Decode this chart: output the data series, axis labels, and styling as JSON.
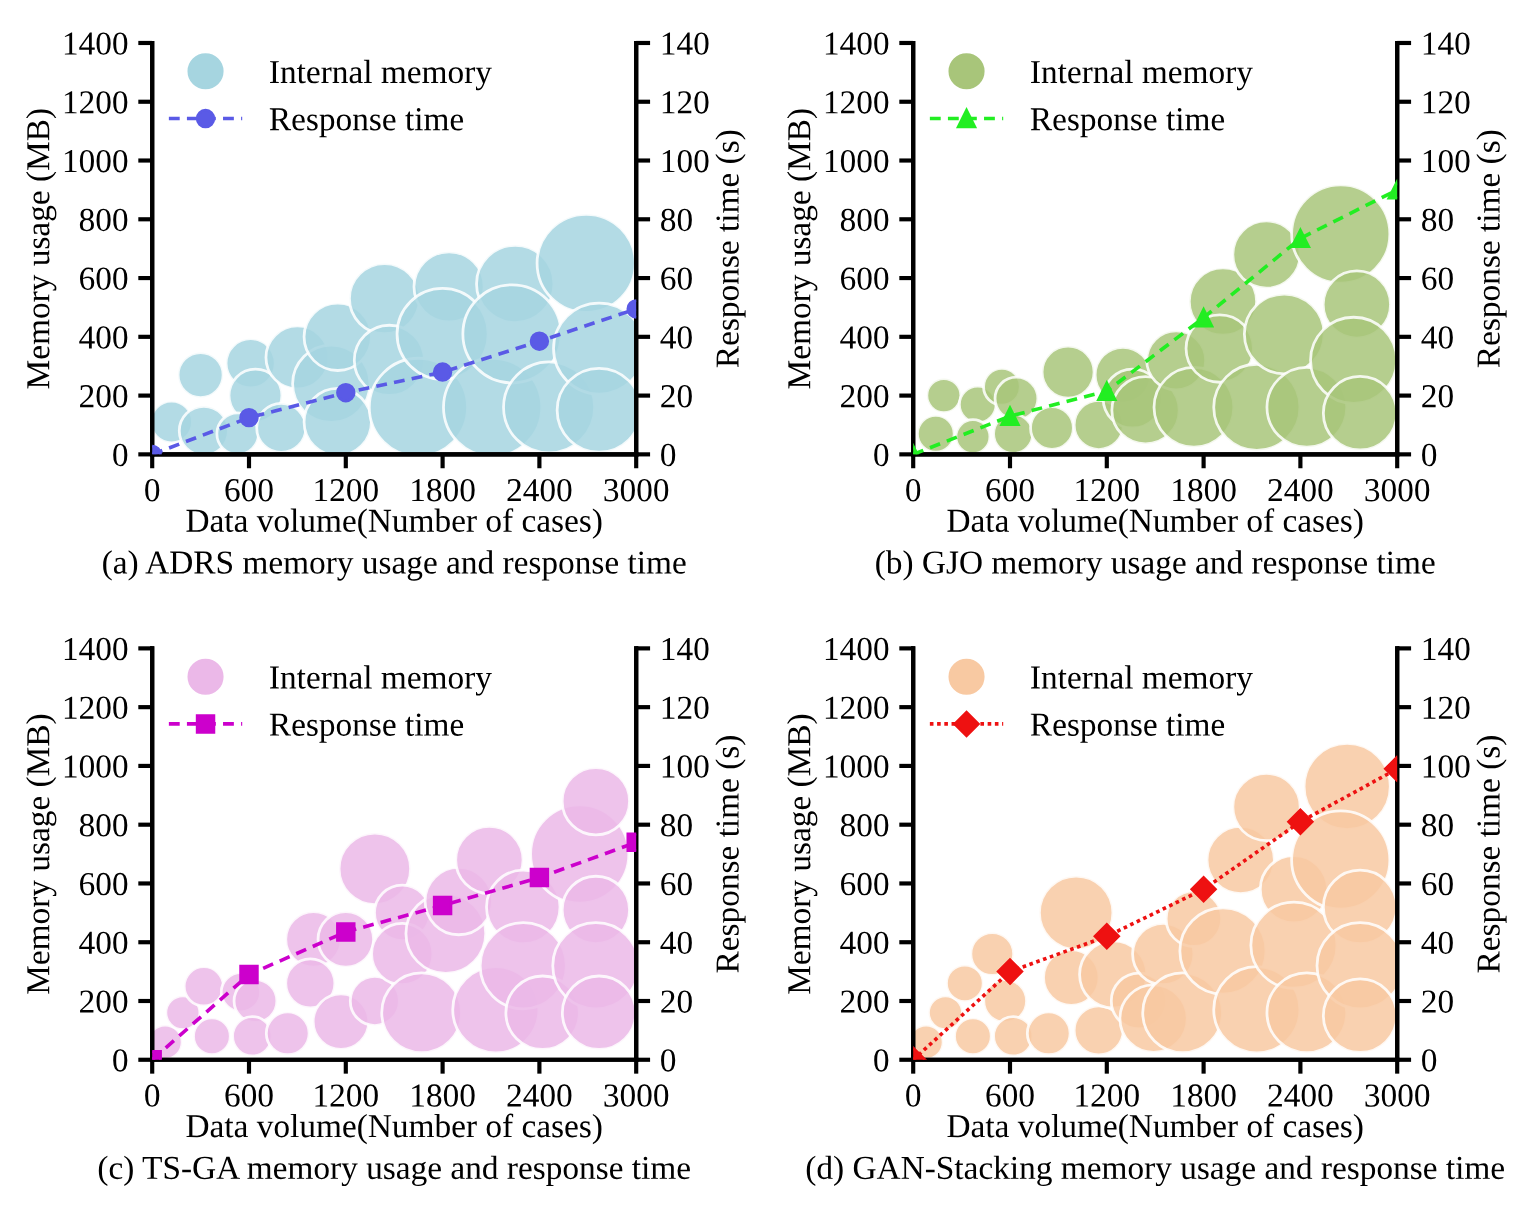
{
  "chart_data": [
    {
      "type": "bubble",
      "title": "(a) ADRS memory usage and response time",
      "xlabel": "Data volume(Number of cases)",
      "ylabel": "Memory usage (MB)",
      "y2label": "Response time (s)",
      "xlim": [
        0,
        3000
      ],
      "xticks": [
        0,
        600,
        1200,
        1800,
        2400,
        3000
      ],
      "ylim": [
        0,
        1400
      ],
      "yticks": [
        0,
        200,
        400,
        600,
        800,
        1000,
        1200,
        1400
      ],
      "y2lim": [
        0,
        140
      ],
      "y2ticks": [
        0,
        20,
        40,
        60,
        80,
        100,
        120,
        140
      ],
      "legend": "top left",
      "grid": false,
      "series": [
        {
          "name": "Internal memory",
          "color": "#a6d5e0",
          "x": [
            120,
            300,
            320,
            610,
            640,
            530,
            900,
            800,
            1110,
            1150,
            1150,
            1440,
            1470,
            1650,
            1840,
            1800,
            2110,
            2250,
            2230,
            2460,
            2690,
            2770,
            2770
          ],
          "values": [
            110,
            270,
            80,
            310,
            200,
            70,
            330,
            90,
            240,
            400,
            110,
            530,
            320,
            160,
            570,
            410,
            160,
            580,
            410,
            160,
            650,
            360,
            150
          ],
          "sizes": [
            0.18,
            0.21,
            0.25,
            0.25,
            0.29,
            0.18,
            0.41,
            0.25,
            0.62,
            0.47,
            0.47,
            0.51,
            0.51,
            1,
            0.51,
            0.86,
            1,
            0.62,
            1,
            0.86,
            1,
            0.86,
            0.73
          ]
        },
        {
          "name": "Response time",
          "type": "line",
          "axis": "y2",
          "color": "#5a5ae6",
          "marker": "circle",
          "line_style": "dashed",
          "x": [
            0,
            600,
            1200,
            1800,
            2400,
            3000
          ],
          "values": [
            0,
            12.5,
            21,
            28,
            38.5,
            49.5
          ]
        }
      ]
    },
    {
      "type": "bubble",
      "title": "(b) GJO memory usage and response time",
      "xlabel": "Data volume(Number of cases)",
      "ylabel": "Memory usage (MB)",
      "y2label": "Response time (s)",
      "xlim": [
        0,
        3000
      ],
      "xticks": [
        0,
        600,
        1200,
        1800,
        2400,
        3000
      ],
      "ylim": [
        0,
        1400
      ],
      "yticks": [
        0,
        200,
        400,
        600,
        800,
        1000,
        1200,
        1400
      ],
      "y2lim": [
        0,
        140
      ],
      "y2ticks": [
        0,
        20,
        40,
        60,
        80,
        100,
        120,
        140
      ],
      "legend": "top left",
      "grid": false,
      "series": [
        {
          "name": "Internal memory",
          "color": "#a8c57a",
          "x": [
            140,
            190,
            400,
            370,
            550,
            640,
            620,
            860,
            960,
            1150,
            1300,
            1360,
            1440,
            1630,
            1740,
            1920,
            1900,
            2130,
            2190,
            2300,
            2440,
            2650,
            2750,
            2730,
            2770
          ],
          "values": [
            70,
            200,
            170,
            60,
            230,
            190,
            70,
            90,
            280,
            100,
            270,
            190,
            150,
            320,
            160,
            520,
            360,
            160,
            680,
            410,
            160,
            750,
            510,
            320,
            140
          ],
          "sizes": [
            0.14,
            0.12,
            0.14,
            0.12,
            0.14,
            0.19,
            0.16,
            0.19,
            0.28,
            0.25,
            0.32,
            0.36,
            0.47,
            0.36,
            0.66,
            0.47,
            0.47,
            0.77,
            0.47,
            0.66,
            0.66,
            1,
            0.47,
            0.77,
            0.56
          ]
        },
        {
          "name": "Response time",
          "type": "line",
          "axis": "y2",
          "color": "#22ee22",
          "marker": "triangle",
          "line_style": "dashed",
          "x": [
            0,
            600,
            1200,
            1800,
            2400,
            3000
          ],
          "values": [
            0,
            13,
            21.5,
            46.5,
            73.5,
            90
          ]
        }
      ]
    },
    {
      "type": "bubble",
      "title": "(c) TS-GA memory usage and response time",
      "xlabel": "Data volume(Number of cases)",
      "ylabel": "Memory usage (MB)",
      "y2label": "Response time (s)",
      "xlim": [
        0,
        3000
      ],
      "xticks": [
        0,
        600,
        1200,
        1800,
        2400,
        3000
      ],
      "ylim": [
        0,
        1400
      ],
      "yticks": [
        0,
        200,
        400,
        600,
        800,
        1000,
        1200,
        1400
      ],
      "y2lim": [
        0,
        140
      ],
      "y2ticks": [
        0,
        20,
        40,
        60,
        80,
        100,
        120,
        140
      ],
      "legend": "top left",
      "grid": false,
      "series": [
        {
          "name": "Internal memory",
          "color": "#ebb8e8",
          "x": [
            80,
            190,
            320,
            370,
            550,
            640,
            620,
            840,
            1000,
            980,
            1170,
            1200,
            1380,
            1380,
            1550,
            1550,
            1670,
            1820,
            1900,
            2090,
            2130,
            2300,
            2300,
            2420,
            2650,
            2750,
            2750,
            2770,
            2750
          ],
          "values": [
            60,
            160,
            250,
            80,
            230,
            200,
            80,
            90,
            410,
            260,
            130,
            410,
            650,
            200,
            500,
            360,
            160,
            430,
            540,
            680,
            170,
            520,
            320,
            160,
            700,
            510,
            320,
            160,
            880
          ],
          "sizes": [
            0.12,
            0.12,
            0.16,
            0.14,
            0.16,
            0.19,
            0.16,
            0.19,
            0.32,
            0.25,
            0.32,
            0.32,
            0.53,
            0.25,
            0.32,
            0.39,
            0.66,
            0.66,
            0.47,
            0.47,
            0.77,
            0.56,
            0.77,
            0.56,
            1,
            0.47,
            0.77,
            0.56,
            0.47
          ]
        },
        {
          "name": "Response time",
          "type": "line",
          "axis": "y2",
          "color": "#cc00cc",
          "marker": "square",
          "line_style": "dashed",
          "x": [
            0,
            600,
            1200,
            1800,
            2400,
            3000
          ],
          "values": [
            0,
            29,
            43.5,
            52.5,
            62,
            74
          ]
        }
      ]
    },
    {
      "type": "bubble",
      "title": "(d) GAN-Stacking memory usage and response time",
      "xlabel": "Data volume(Number of cases)",
      "ylabel": "Memory usage (MB)",
      "y2label": "Response time (s)",
      "xlim": [
        0,
        3000
      ],
      "xticks": [
        0,
        600,
        1200,
        1800,
        2400,
        3000
      ],
      "ylim": [
        0,
        1400
      ],
      "yticks": [
        0,
        200,
        400,
        600,
        800,
        1000,
        1200,
        1400
      ],
      "y2lim": [
        0,
        140
      ],
      "y2ticks": [
        0,
        20,
        40,
        60,
        80,
        100,
        120,
        140
      ],
      "legend": "top left",
      "grid": false,
      "series": [
        {
          "name": "Internal memory",
          "color": "#f8c9a2",
          "x": [
            80,
            200,
            320,
            370,
            490,
            570,
            620,
            840,
            1010,
            980,
            1150,
            1240,
            1400,
            1490,
            1550,
            1670,
            1740,
            1920,
            2030,
            2130,
            2190,
            2360,
            2360,
            2440,
            2690,
            2650,
            2770,
            2770,
            2770
          ],
          "values": [
            60,
            160,
            260,
            80,
            360,
            200,
            80,
            90,
            500,
            280,
            100,
            290,
            200,
            140,
            360,
            160,
            480,
            370,
            680,
            170,
            860,
            580,
            390,
            160,
            930,
            680,
            520,
            320,
            150
          ],
          "sizes": [
            0.12,
            0.12,
            0.14,
            0.14,
            0.19,
            0.19,
            0.16,
            0.19,
            0.56,
            0.32,
            0.25,
            0.47,
            0.32,
            0.47,
            0.39,
            0.66,
            0.32,
            0.77,
            0.47,
            0.77,
            0.47,
            0.47,
            0.77,
            0.66,
            0.77,
            1,
            0.56,
            0.77,
            0.56
          ]
        },
        {
          "name": "Response time",
          "type": "line",
          "axis": "y2",
          "color": "#ee1111",
          "marker": "diamond",
          "line_style": "dotted",
          "x": [
            0,
            600,
            1200,
            1800,
            2400,
            3000
          ],
          "values": [
            0,
            30,
            42,
            58,
            81,
            99
          ]
        }
      ]
    }
  ]
}
